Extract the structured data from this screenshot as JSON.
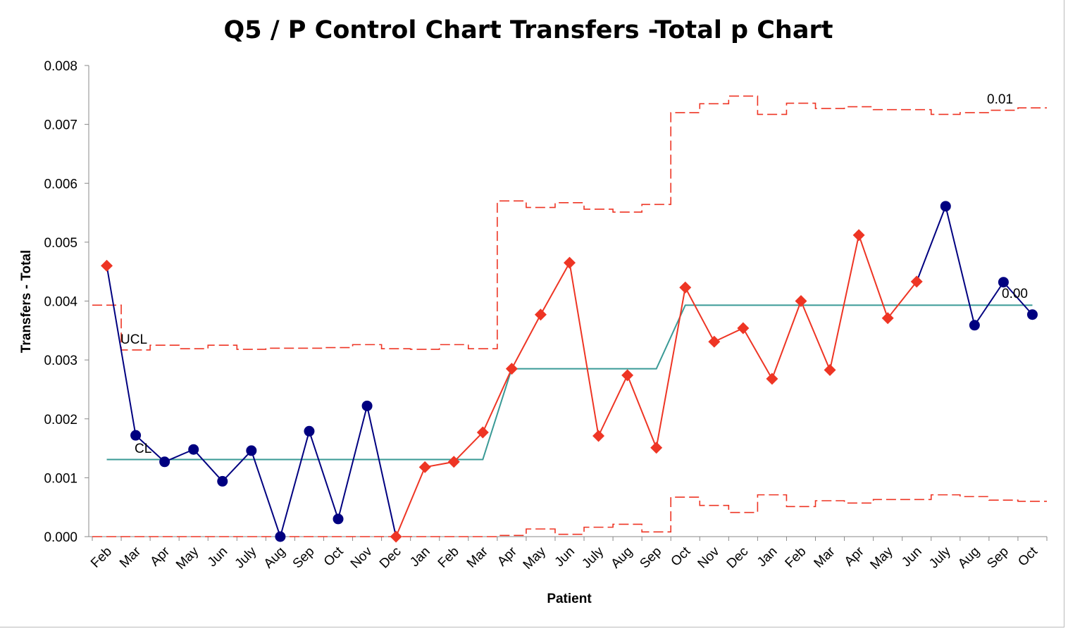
{
  "chart_data": {
    "type": "line",
    "title": "Q5 / P Control Chart Transfers -Total p Chart",
    "xlabel": "Patient",
    "ylabel": "Transfers  - Total",
    "ylim": [
      0,
      0.008
    ],
    "yticks": [
      "0.000",
      "0.001",
      "0.002",
      "0.003",
      "0.004",
      "0.005",
      "0.006",
      "0.007",
      "0.008"
    ],
    "grid": false,
    "categories": [
      "Feb",
      "Mar",
      "Apr",
      "May",
      "Jun",
      "July",
      "Aug",
      "Sep",
      "Oct",
      "Nov",
      "Dec",
      "Jan",
      "Feb",
      "Mar",
      "Apr",
      "May",
      "Jun",
      "July",
      "Aug",
      "Sep",
      "Oct",
      "Nov",
      "Dec",
      "Jan",
      "Feb",
      "Mar",
      "Apr",
      "May",
      "Jun",
      "July",
      "Aug",
      "Sep",
      "Oct"
    ],
    "series": [
      {
        "color": "#000080",
        "signal_color": "#ee3524",
        "values": [
          0.0046,
          0.00172,
          0.00127,
          0.00148,
          0.00094,
          0.00146,
          0.0,
          0.00179,
          0.0003,
          0.00222,
          0.0,
          0.00118,
          0.00127,
          0.00177,
          0.00285,
          0.00377,
          0.00465,
          0.00171,
          0.00274,
          0.00151,
          0.00423,
          0.00331,
          0.00354,
          0.00268,
          0.004,
          0.00283,
          0.00512,
          0.00371,
          0.00433,
          0.00561,
          0.00359,
          0.00432,
          0.00377
        ],
        "signal": [
          true,
          false,
          false,
          false,
          false,
          false,
          false,
          false,
          false,
          false,
          true,
          true,
          true,
          true,
          true,
          true,
          true,
          true,
          true,
          true,
          true,
          true,
          true,
          true,
          true,
          true,
          true,
          true,
          true,
          false,
          false,
          false,
          false
        ]
      },
      {
        "name": "CL",
        "color": "#3a9a96",
        "values": [
          0.00131,
          0.00131,
          0.00131,
          0.00131,
          0.00131,
          0.00131,
          0.00131,
          0.00131,
          0.00131,
          0.00131,
          0.00131,
          0.00131,
          0.00131,
          0.00131,
          0.00285,
          0.00285,
          0.00285,
          0.00285,
          0.00285,
          0.00285,
          0.00393,
          0.00393,
          0.00393,
          0.00393,
          0.00393,
          0.00393,
          0.00393,
          0.00393,
          0.00393,
          0.00393,
          0.00393,
          0.00393,
          0.00393
        ]
      },
      {
        "name": "UCL",
        "color": "#ee3524",
        "style": "dashed-step",
        "values": [
          0.00393,
          0.00317,
          0.00325,
          0.00319,
          0.00325,
          0.00318,
          0.0032,
          0.0032,
          0.00321,
          0.00326,
          0.00319,
          0.00318,
          0.00326,
          0.00319,
          0.0057,
          0.00559,
          0.00567,
          0.00556,
          0.00551,
          0.00564,
          0.0072,
          0.00735,
          0.00748,
          0.00717,
          0.00736,
          0.00727,
          0.0073,
          0.00725,
          0.00725,
          0.00717,
          0.0072,
          0.00724,
          0.00728
        ]
      },
      {
        "color": "#ee3524",
        "style": "dashed-step",
        "values": [
          0,
          0,
          0,
          0,
          0,
          0,
          0,
          0,
          0,
          0,
          0,
          0,
          0,
          0,
          2e-05,
          0.00013,
          4e-05,
          0.00016,
          0.00021,
          8e-05,
          0.00067,
          0.00053,
          0.00041,
          0.00071,
          0.00051,
          0.00061,
          0.00057,
          0.00063,
          0.00063,
          0.00071,
          0.00068,
          0.00062,
          0.0006
        ]
      }
    ],
    "annotations": {
      "ucl": "UCL",
      "cl": "CL",
      "ucl_end": "0.01",
      "cl_end": "0.00"
    }
  }
}
